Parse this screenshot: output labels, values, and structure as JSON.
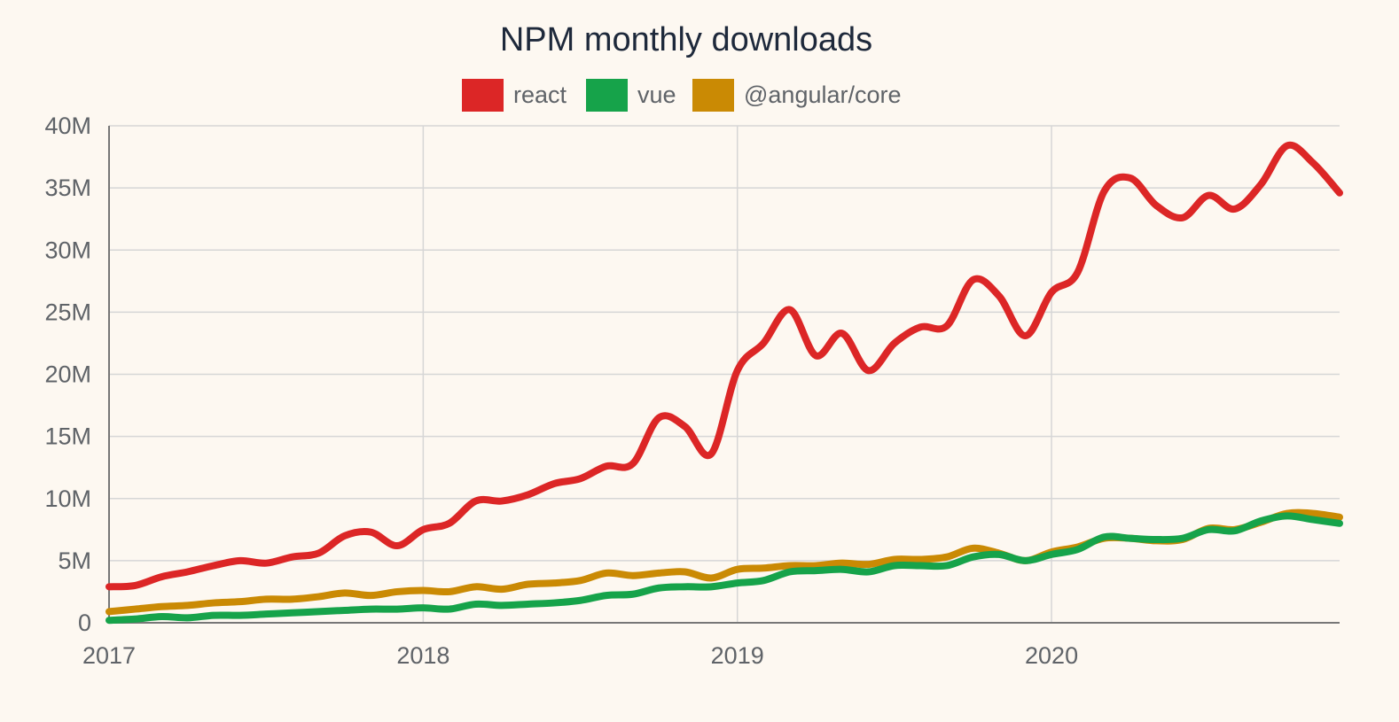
{
  "chart_data": {
    "type": "line",
    "title": "NPM monthly downloads",
    "xlabel": "",
    "ylabel": "",
    "x_axis": {
      "min": 2017,
      "max": 2020.917,
      "ticks": [
        {
          "value": 2017,
          "label": "2017"
        },
        {
          "value": 2018,
          "label": "2018"
        },
        {
          "value": 2019,
          "label": "2019"
        },
        {
          "value": 2020,
          "label": "2020"
        }
      ]
    },
    "y_axis": {
      "min": 0,
      "max": 40000000,
      "ticks": [
        {
          "value": 0,
          "label": "0"
        },
        {
          "value": 5000000,
          "label": "5M"
        },
        {
          "value": 10000000,
          "label": "10M"
        },
        {
          "value": 15000000,
          "label": "15M"
        },
        {
          "value": 20000000,
          "label": "20M"
        },
        {
          "value": 25000000,
          "label": "25M"
        },
        {
          "value": 30000000,
          "label": "30M"
        },
        {
          "value": 35000000,
          "label": "35M"
        },
        {
          "value": 40000000,
          "label": "40M"
        }
      ]
    },
    "grid": true,
    "legend_position": "top-center",
    "x": [
      2017.0,
      2017.083,
      2017.167,
      2017.25,
      2017.333,
      2017.417,
      2017.5,
      2017.583,
      2017.667,
      2017.75,
      2017.833,
      2017.917,
      2018.0,
      2018.083,
      2018.167,
      2018.25,
      2018.333,
      2018.417,
      2018.5,
      2018.583,
      2018.667,
      2018.75,
      2018.833,
      2018.917,
      2019.0,
      2019.083,
      2019.167,
      2019.25,
      2019.333,
      2019.417,
      2019.5,
      2019.583,
      2019.667,
      2019.75,
      2019.833,
      2019.917,
      2020.0,
      2020.083,
      2020.167,
      2020.25,
      2020.333,
      2020.417,
      2020.5,
      2020.583,
      2020.667,
      2020.75,
      2020.833,
      2020.917
    ],
    "series": [
      {
        "name": "react",
        "color": "#dc2626",
        "values": [
          2.9,
          3.0,
          3.7,
          4.1,
          4.6,
          5.0,
          4.8,
          5.3,
          5.6,
          7.0,
          7.3,
          6.2,
          7.5,
          8.0,
          9.8,
          9.8,
          10.3,
          11.2,
          11.6,
          12.6,
          12.8,
          16.5,
          15.8,
          13.6,
          20.3,
          22.5,
          25.2,
          21.5,
          23.3,
          20.3,
          22.5,
          23.8,
          23.9,
          27.6,
          26.3,
          23.1,
          26.6,
          28.2,
          34.7,
          35.8,
          33.6,
          32.6,
          34.4,
          33.3,
          35.3,
          38.4,
          37.0,
          34.6
        ]
      },
      {
        "name": "vue",
        "color": "#16a34a",
        "values": [
          0.2,
          0.3,
          0.5,
          0.4,
          0.6,
          0.6,
          0.7,
          0.8,
          0.9,
          1.0,
          1.1,
          1.1,
          1.2,
          1.1,
          1.5,
          1.4,
          1.5,
          1.6,
          1.8,
          2.2,
          2.3,
          2.8,
          2.9,
          2.9,
          3.2,
          3.4,
          4.1,
          4.2,
          4.3,
          4.1,
          4.6,
          4.6,
          4.6,
          5.3,
          5.5,
          5.0,
          5.5,
          5.9,
          6.9,
          6.8,
          6.7,
          6.8,
          7.5,
          7.4,
          8.2,
          8.6,
          8.3,
          8.0
        ]
      },
      {
        "name": "@angular/core",
        "color": "#ca8a04",
        "values": [
          0.9,
          1.1,
          1.3,
          1.4,
          1.6,
          1.7,
          1.9,
          1.9,
          2.1,
          2.4,
          2.2,
          2.5,
          2.6,
          2.5,
          2.9,
          2.7,
          3.1,
          3.2,
          3.4,
          4.0,
          3.8,
          4.0,
          4.1,
          3.6,
          4.3,
          4.4,
          4.6,
          4.6,
          4.8,
          4.7,
          5.1,
          5.1,
          5.3,
          6.0,
          5.6,
          5.0,
          5.7,
          6.1,
          6.8,
          6.8,
          6.6,
          6.7,
          7.6,
          7.5,
          8.1,
          8.8,
          8.8,
          8.5
        ]
      }
    ]
  }
}
